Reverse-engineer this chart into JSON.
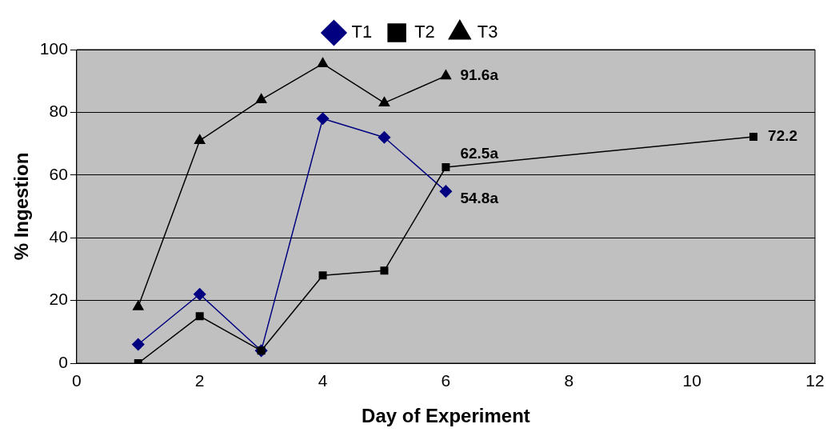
{
  "chart_data": {
    "type": "line",
    "xlabel": "Day of Experiment",
    "ylabel": "% Ingestion",
    "xlim": [
      0,
      12
    ],
    "xticks": [
      0,
      2,
      4,
      6,
      8,
      10,
      12
    ],
    "ylim": [
      0,
      100
    ],
    "yticks": [
      0,
      20,
      40,
      60,
      80,
      100
    ],
    "grid": "y",
    "legend": "top",
    "line_style": "solid",
    "series": [
      {
        "name": "T1",
        "color": "#000080",
        "marker": "diamond",
        "x": [
          1,
          2,
          3,
          4,
          5,
          6
        ],
        "values": [
          6,
          22,
          4,
          78,
          72,
          54.8
        ],
        "value_labels": [
          null,
          null,
          null,
          null,
          null,
          "54.8a"
        ]
      },
      {
        "name": "T2",
        "color": "#000000",
        "marker": "square",
        "x": [
          1,
          2,
          3,
          4,
          5,
          6,
          11
        ],
        "values": [
          0,
          15,
          4,
          28,
          29.5,
          62.5,
          72.2
        ],
        "value_labels": [
          null,
          null,
          null,
          null,
          null,
          "62.5a",
          "72.2"
        ]
      },
      {
        "name": "T3",
        "color": "#000000",
        "marker": "triangle",
        "x": [
          1,
          2,
          3,
          4,
          5,
          6
        ],
        "values": [
          18,
          71,
          84,
          95.5,
          83,
          91.6
        ],
        "value_labels": [
          null,
          null,
          null,
          null,
          null,
          "91.6a"
        ]
      }
    ]
  }
}
